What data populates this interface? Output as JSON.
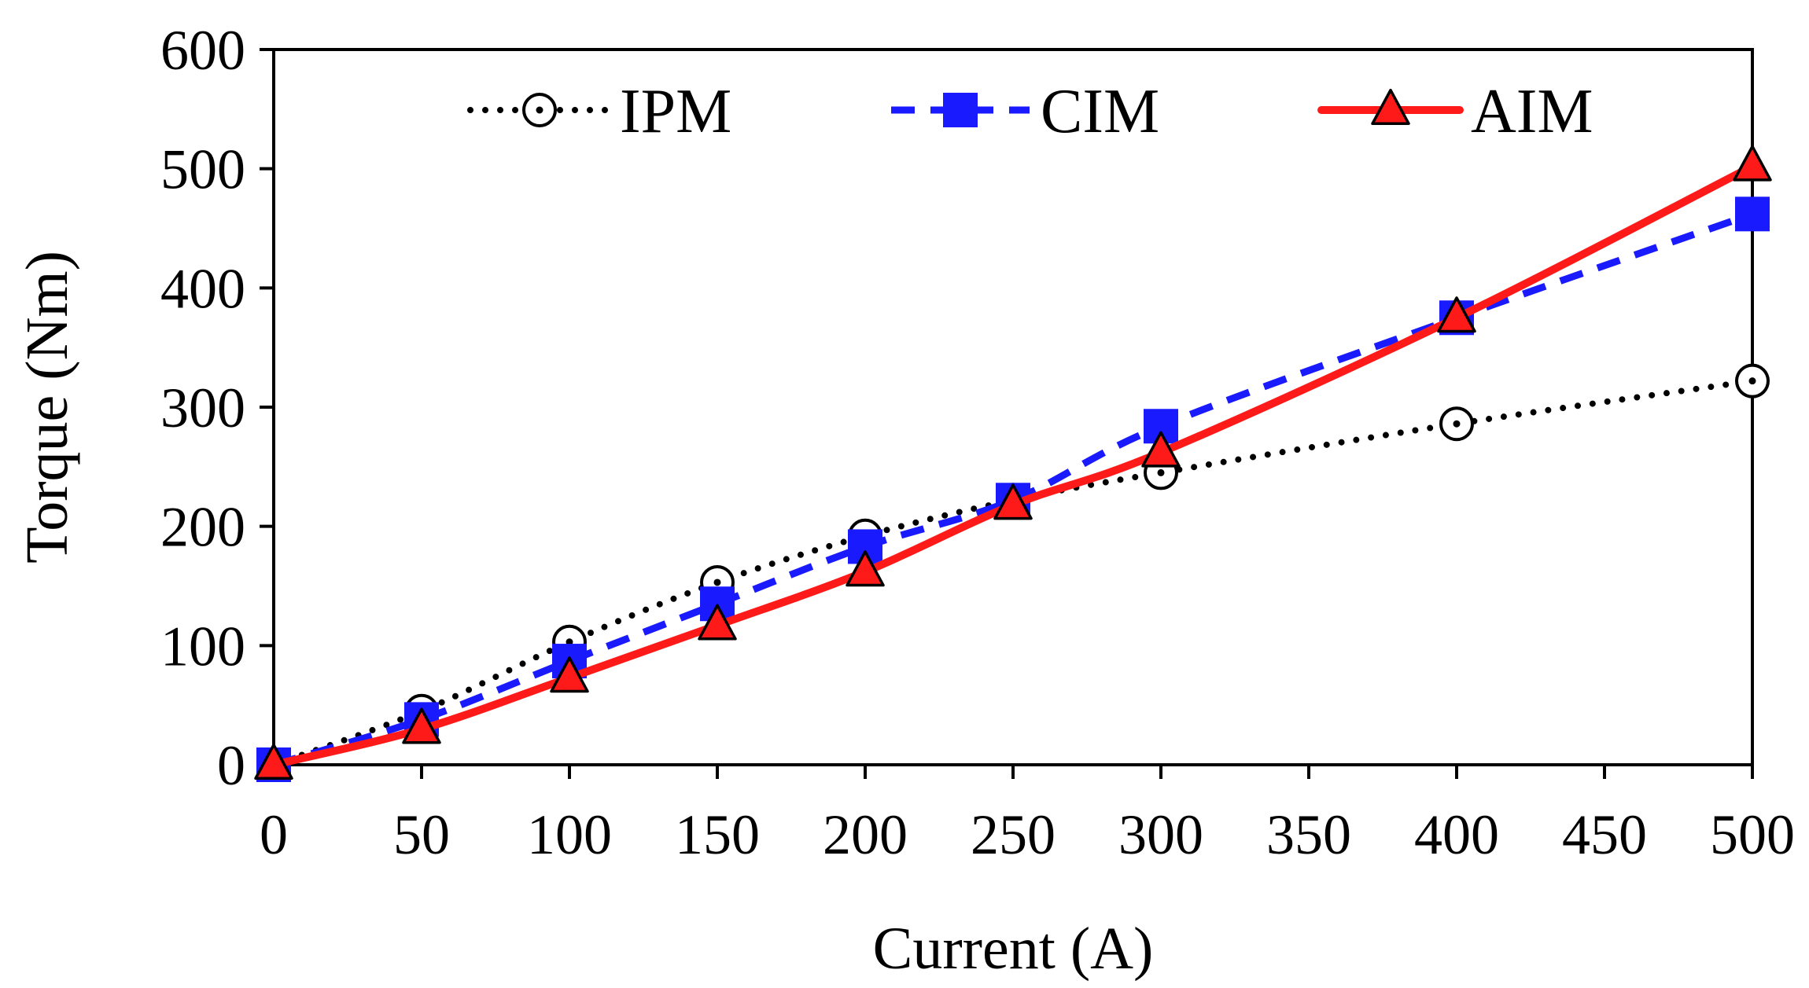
{
  "chart_data": {
    "type": "line",
    "title": "",
    "xlabel": "Current (A)",
    "ylabel": "Torque (Nm)",
    "xlim": [
      0,
      500
    ],
    "ylim": [
      0,
      600
    ],
    "x_ticks": [
      0,
      50,
      100,
      150,
      200,
      250,
      300,
      350,
      400,
      450,
      500
    ],
    "y_ticks": [
      0,
      100,
      200,
      300,
      400,
      500,
      600
    ],
    "grid": false,
    "legend_position": "top",
    "series": [
      {
        "name": "IPM",
        "color": "#000000",
        "line_style": "dotted",
        "marker": "open-circle",
        "x": [
          0,
          50,
          100,
          150,
          200,
          250,
          300,
          400,
          500
        ],
        "y": [
          0,
          45,
          103,
          153,
          192,
          222,
          245,
          286,
          322
        ]
      },
      {
        "name": "CIM",
        "color": "#1a1aff",
        "line_style": "dashed",
        "marker": "filled-square",
        "x": [
          0,
          50,
          100,
          150,
          200,
          250,
          300,
          400,
          500
        ],
        "y": [
          0,
          38,
          87,
          135,
          183,
          222,
          284,
          375,
          462
        ]
      },
      {
        "name": "AIM",
        "color": "#ff1a1a",
        "line_style": "solid",
        "marker": "filled-triangle",
        "x": [
          0,
          50,
          100,
          150,
          200,
          250,
          300,
          400,
          500
        ],
        "y": [
          0,
          30,
          73,
          117,
          162,
          218,
          262,
          375,
          502
        ]
      }
    ]
  }
}
